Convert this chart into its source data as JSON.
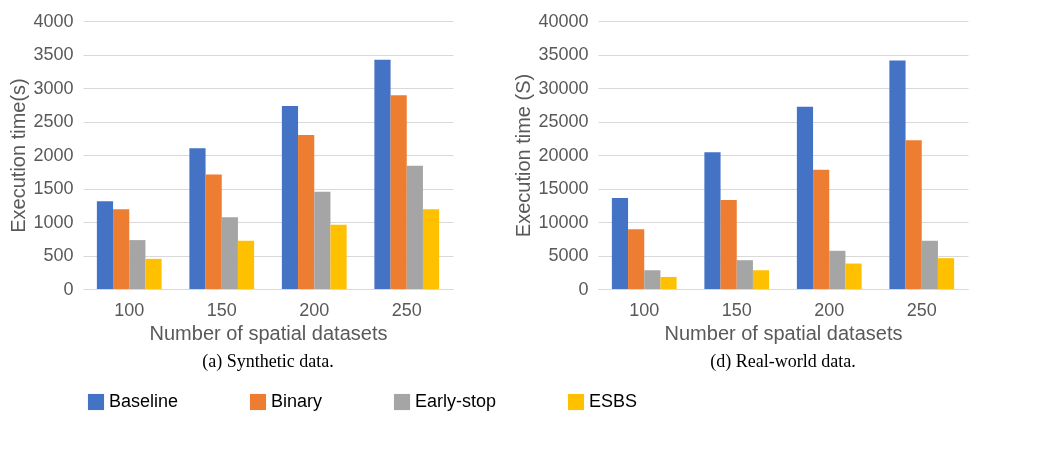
{
  "chart_data": [
    {
      "type": "bar",
      "xlabel": "Number of spatial datasets",
      "ylabel": "Execution time(s)",
      "categories": [
        "100",
        "150",
        "200",
        "250"
      ],
      "series": [
        {
          "name": "Baseline",
          "color": "#4472c4",
          "values": [
            1310,
            2100,
            2730,
            3420
          ]
        },
        {
          "name": "Binary",
          "color": "#ed7d31",
          "values": [
            1190,
            1710,
            2300,
            2890
          ]
        },
        {
          "name": "Early-stop",
          "color": "#a5a5a5",
          "values": [
            730,
            1070,
            1450,
            1840
          ]
        },
        {
          "name": "ESBS",
          "color": "#ffc000",
          "values": [
            450,
            720,
            960,
            1190
          ]
        }
      ],
      "ylim": [
        0,
        4000
      ],
      "yticks": [
        0,
        500,
        1000,
        1500,
        2000,
        2500,
        3000,
        3500,
        4000
      ],
      "grid": "y",
      "legend": "bottom",
      "annotations": [
        "(a) Synthetic data."
      ]
    },
    {
      "type": "bar",
      "xlabel": "Number of spatial datasets",
      "ylabel": "Execution time (S)",
      "categories": [
        "100",
        "150",
        "200",
        "250"
      ],
      "series": [
        {
          "name": "Baseline",
          "color": "#4472c4",
          "values": [
            13600,
            20400,
            27200,
            34100
          ]
        },
        {
          "name": "Binary",
          "color": "#ed7d31",
          "values": [
            8900,
            13300,
            17800,
            22200
          ]
        },
        {
          "name": "Early-stop",
          "color": "#a5a5a5",
          "values": [
            2800,
            4300,
            5700,
            7200
          ]
        },
        {
          "name": "ESBS",
          "color": "#ffc000",
          "values": [
            1800,
            2800,
            3800,
            4600
          ]
        }
      ],
      "ylim": [
        0,
        40000
      ],
      "yticks": [
        0,
        5000,
        10000,
        15000,
        20000,
        25000,
        30000,
        35000,
        40000
      ],
      "grid": "y",
      "legend": "bottom",
      "annotations": [
        "(d) Real-world data."
      ]
    }
  ]
}
